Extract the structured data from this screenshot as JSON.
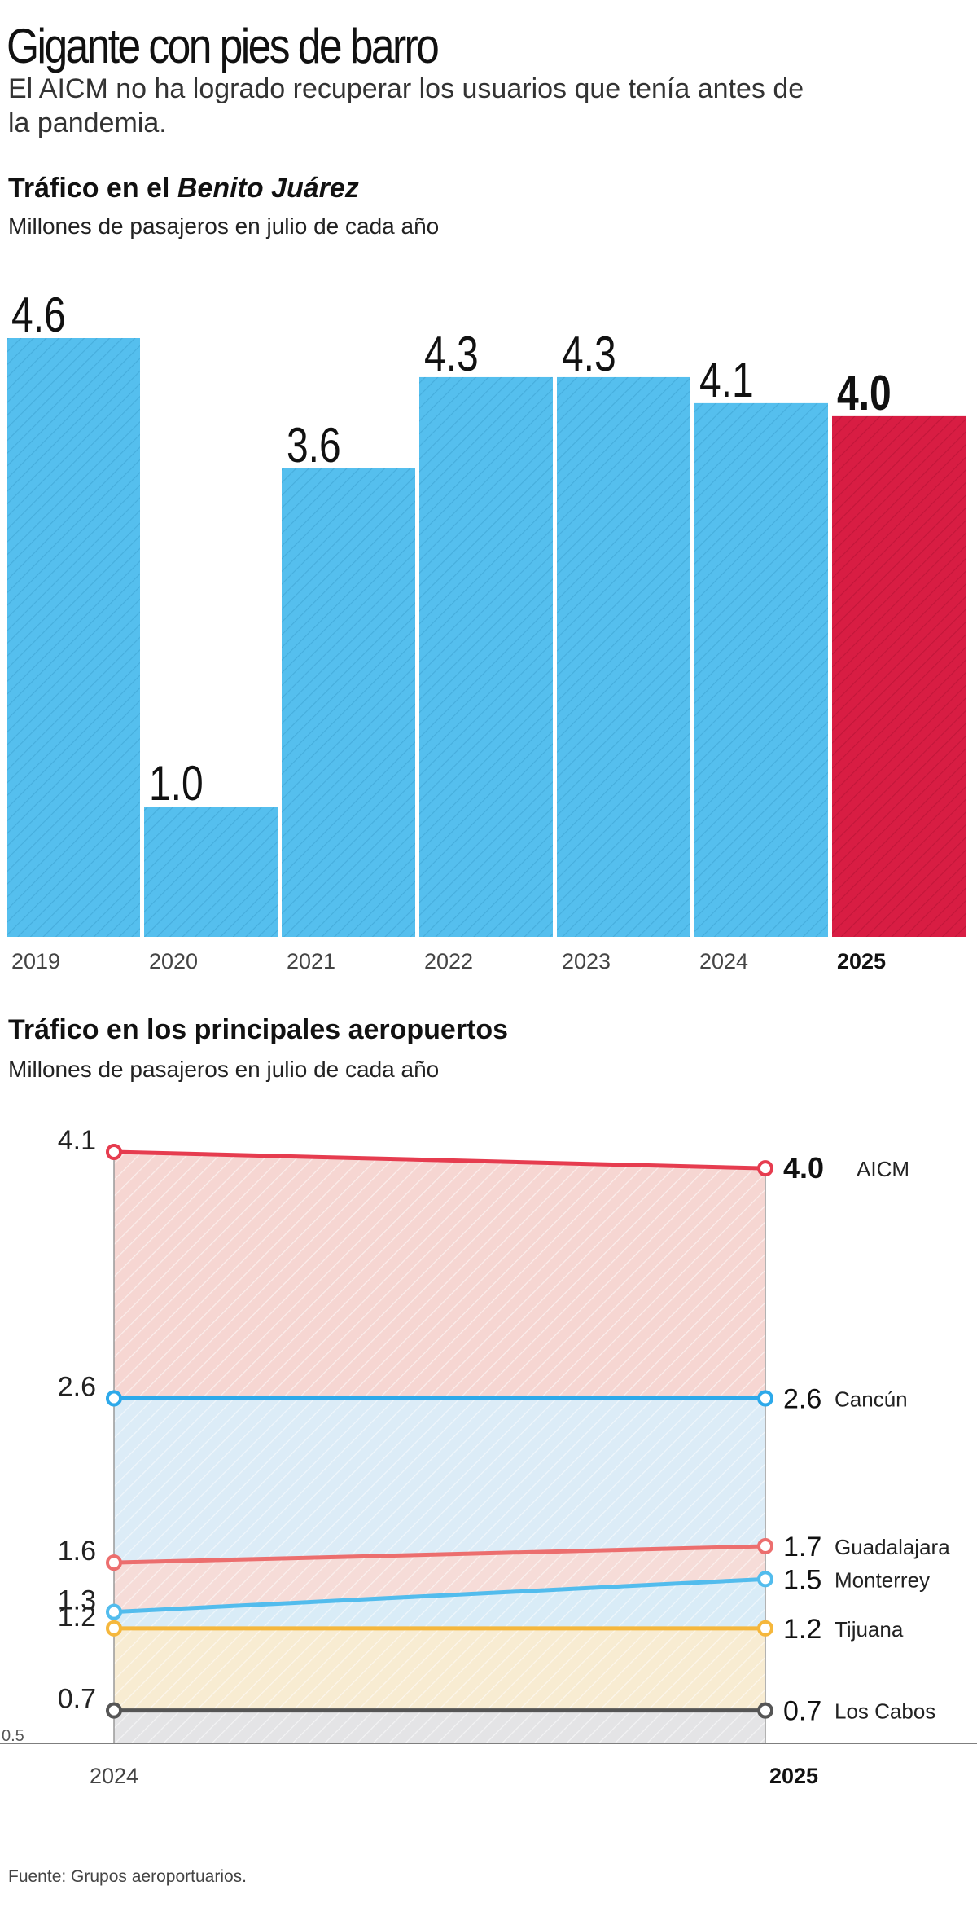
{
  "headline": "Gigante con pies de barro",
  "subhead": "El AICM no ha logrado recuperar los usuarios que tenía antes de la pandemia.",
  "source": "Fuente: Grupos aeroportuarios.",
  "colors": {
    "blue": "#55bfee",
    "red": "#d81d43",
    "line_red": "#e63c4f",
    "line_blue": "#2da9ea",
    "line_salmon": "#ec6e6e",
    "line_lightblue": "#52bced",
    "line_yellow": "#f5b73c",
    "line_gray": "#555555"
  },
  "chart_data": [
    {
      "type": "bar",
      "title_plain": "Tráfico en el ",
      "title_italic": "Benito Juárez",
      "subtitle": "Millones de pasajeros en julio de cada año",
      "categories": [
        "2019",
        "2020",
        "2021",
        "2022",
        "2023",
        "2024",
        "2025"
      ],
      "values": [
        4.6,
        1.0,
        3.6,
        4.3,
        4.3,
        4.1,
        4.0
      ],
      "value_labels": [
        "4.6",
        "1.0",
        "3.6",
        "4.3",
        "4.3",
        "4.1",
        "4.0"
      ],
      "highlight": "2025",
      "ylim": [
        0,
        4.6
      ]
    },
    {
      "type": "line",
      "title": "Tráfico en los principales aeropuertos",
      "subtitle": "Millones de pasajeros en julio de cada año",
      "x": [
        "2024",
        "2025"
      ],
      "ylim": [
        0.5,
        4.1
      ],
      "ymin_label": "0.5",
      "series": [
        {
          "name": "AICM",
          "values": [
            4.1,
            4.0
          ],
          "start_label": "4.1",
          "end_label": "4.0",
          "color": "#e63c4f",
          "fill": "#f6d6d2"
        },
        {
          "name": "Cancún",
          "values": [
            2.6,
            2.6
          ],
          "start_label": "2.6",
          "end_label": "2.6",
          "color": "#2da9ea",
          "fill": "#dcecf7"
        },
        {
          "name": "Guadalajara",
          "values": [
            1.6,
            1.7
          ],
          "start_label": "1.6",
          "end_label": "1.7",
          "color": "#ec6e6e",
          "fill": "#f6dcd8"
        },
        {
          "name": "Monterrey",
          "values": [
            1.3,
            1.5
          ],
          "start_label": "1.3",
          "end_label": "1.5",
          "color": "#52bced",
          "fill": "#d9ecf7"
        },
        {
          "name": "Tijuana",
          "values": [
            1.2,
            1.2
          ],
          "start_label": "1.2",
          "end_label": "1.2",
          "color": "#f5b73c",
          "fill": "#f8ecd2"
        },
        {
          "name": "Los Cabos",
          "values": [
            0.7,
            0.7
          ],
          "start_label": "0.7",
          "end_label": "0.7",
          "color": "#555555",
          "fill": "#e4e4e6"
        }
      ]
    }
  ]
}
